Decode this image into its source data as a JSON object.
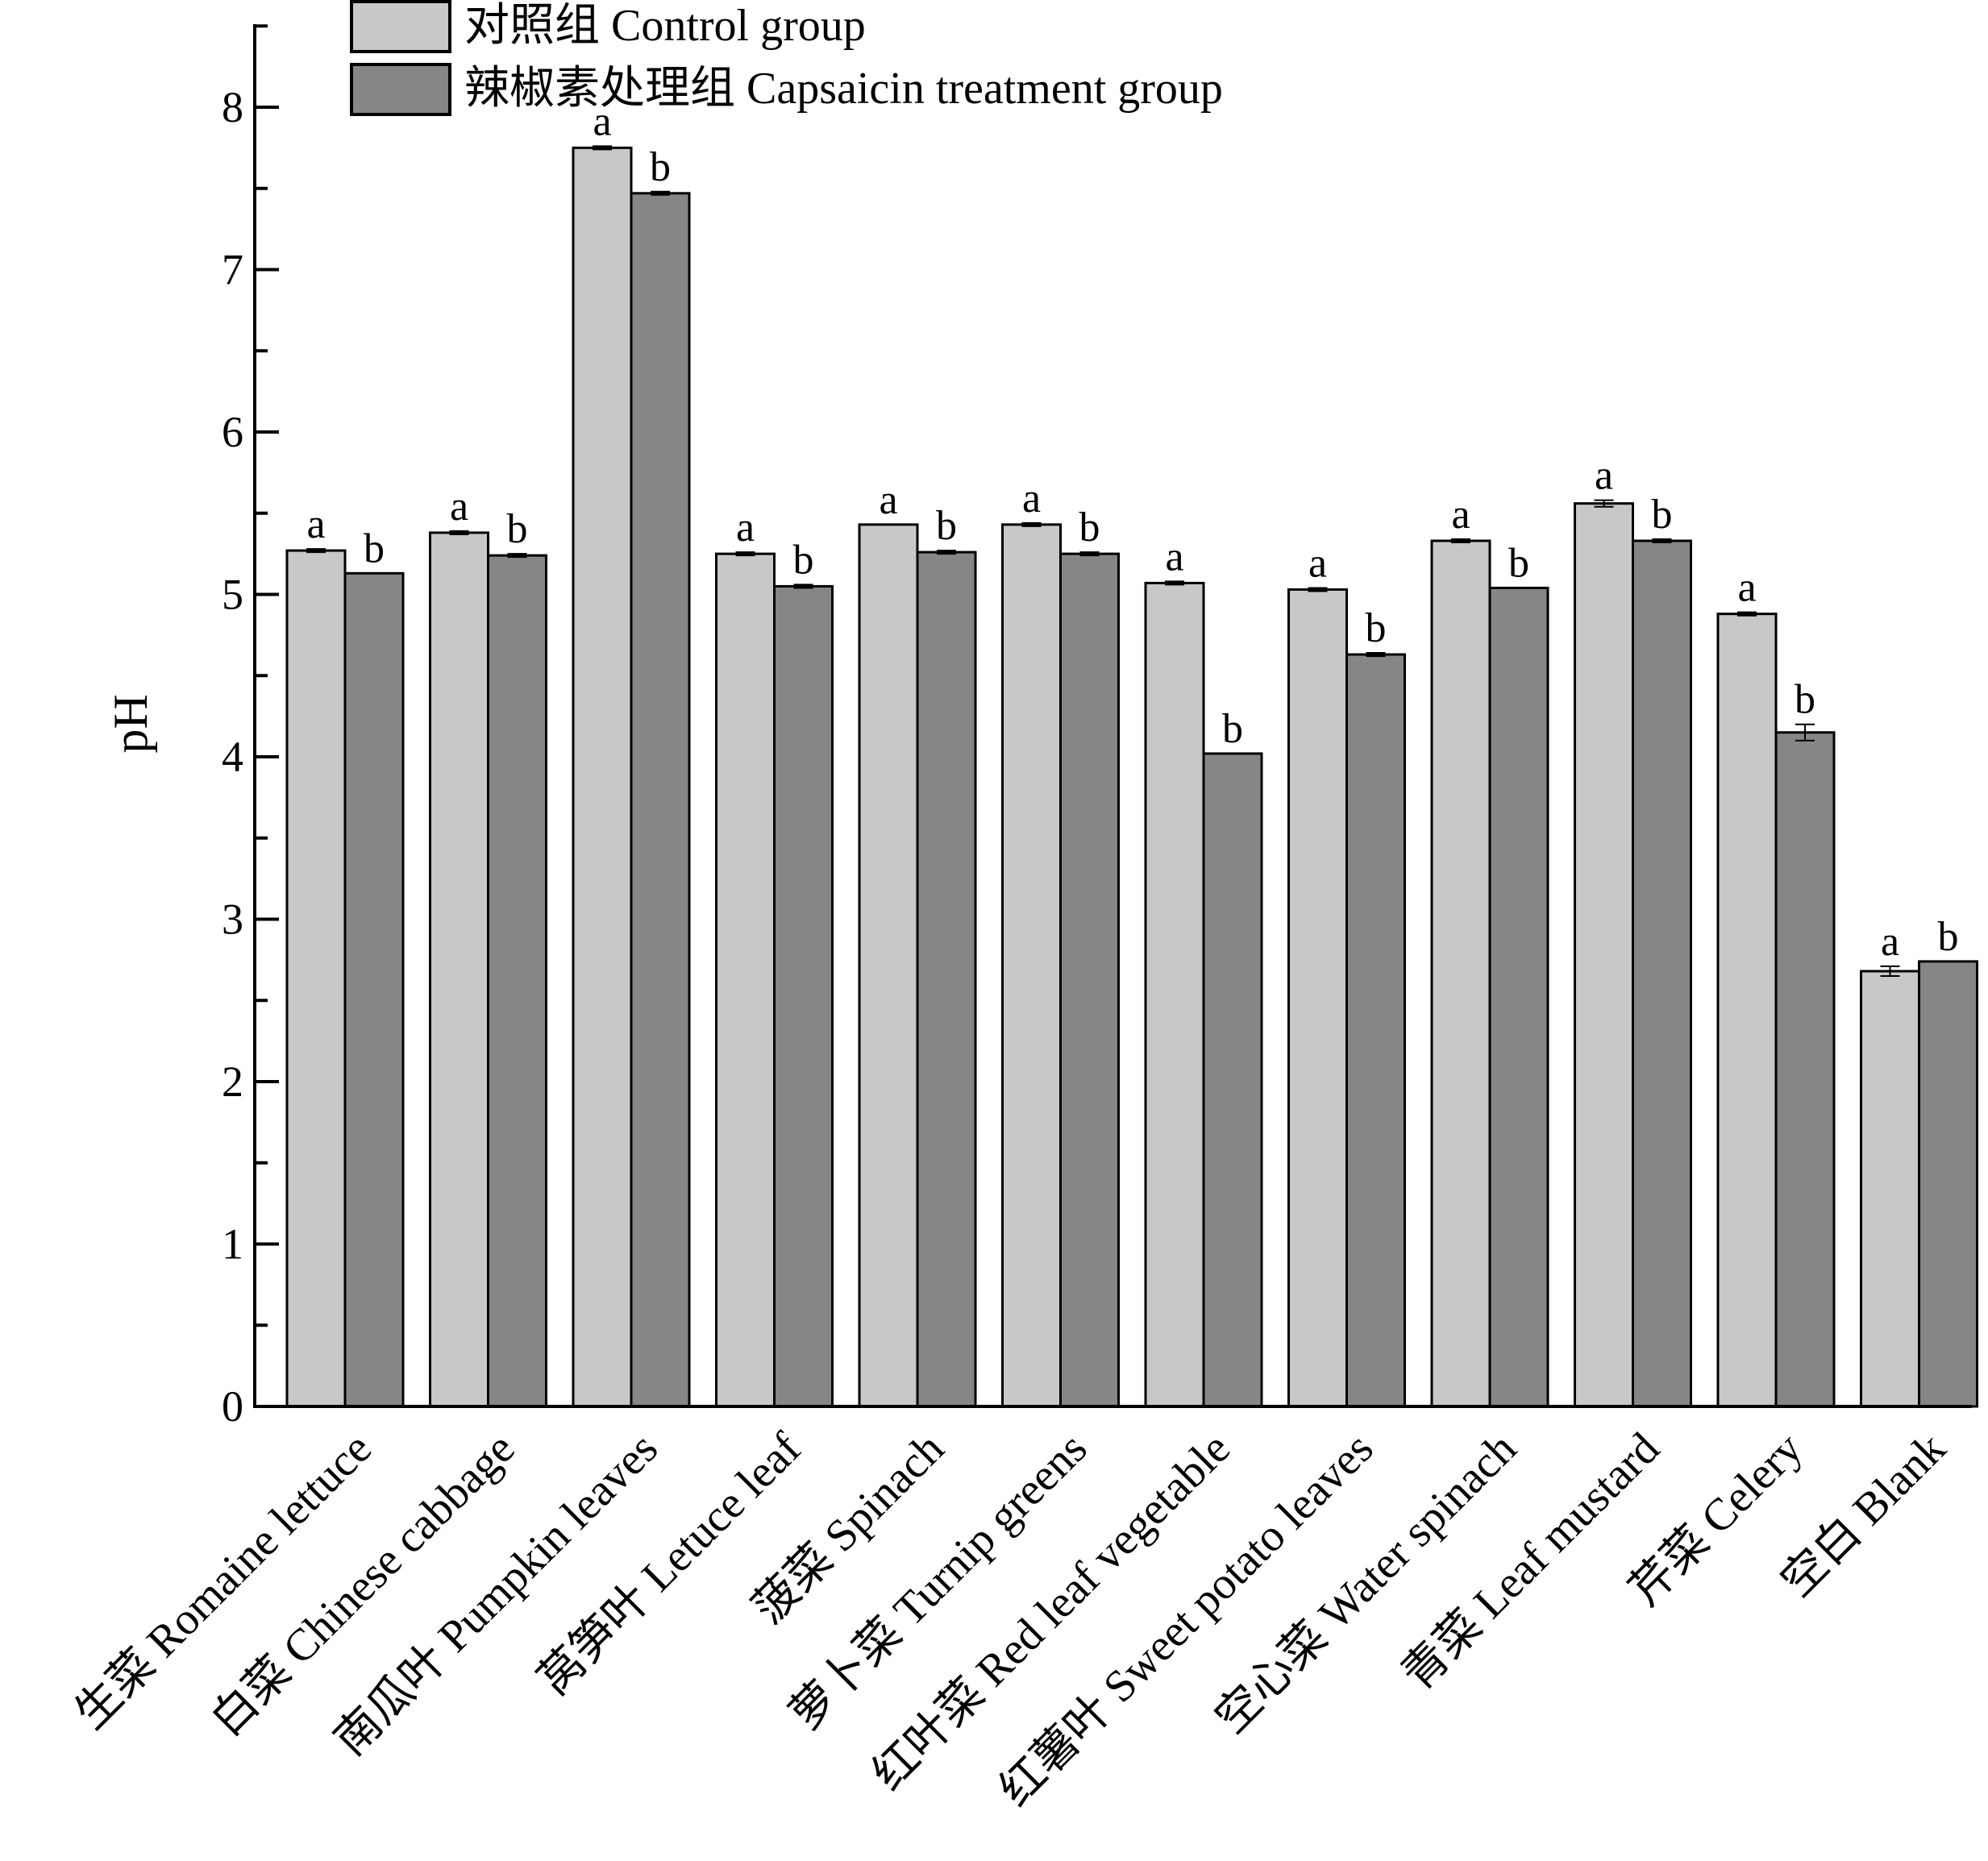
{
  "chart_data": {
    "type": "bar",
    "title": "",
    "xlabel": "",
    "ylabel": "pH",
    "ylim": [
      0,
      8.5
    ],
    "yticks": [
      "0",
      "1",
      "2",
      "3",
      "4",
      "5",
      "6",
      "7",
      "8"
    ],
    "grid": false,
    "legend_position": "top-left",
    "categories": [
      "生菜 Romaine lettuce",
      "白菜 Chinese cabbage",
      "南瓜叶 Pumpkin leaves",
      "莴笋叶 Letuce leaf",
      "菠菜 Spinach",
      "萝卜菜 Turnip greens",
      "红叶菜 Red leaf vegetable",
      "红薯叶 Sweet potato leaves",
      "空心菜 Water spinach",
      "青菜 Leaf mustard",
      "芹菜 Celery",
      "空白 Blank"
    ],
    "series": [
      {
        "name": "对照组 Control group",
        "color": "#c8c8c8",
        "values": [
          5.27,
          5.38,
          7.75,
          5.25,
          5.43,
          5.43,
          5.07,
          5.03,
          5.33,
          5.56,
          4.88,
          2.68
        ],
        "errors": [
          0.01,
          0.01,
          0.01,
          0.01,
          0.0,
          0.01,
          0.01,
          0.01,
          0.01,
          0.02,
          0.01,
          0.03
        ],
        "significance": [
          "a",
          "a",
          "a",
          "a",
          "a",
          "a",
          "a",
          "a",
          "a",
          "a",
          "a",
          "a"
        ]
      },
      {
        "name": "辣椒素处理组 Capsaicin treatment group",
        "color": "#868686",
        "values": [
          5.13,
          5.24,
          7.47,
          5.05,
          5.26,
          5.25,
          4.02,
          4.63,
          5.04,
          5.33,
          4.15,
          2.74
        ],
        "errors": [
          0.0,
          0.01,
          0.01,
          0.01,
          0.01,
          0.01,
          0.0,
          0.01,
          0.0,
          0.01,
          0.05,
          0.0
        ],
        "significance": [
          "b",
          "b",
          "b",
          "b",
          "b",
          "b",
          "b",
          "b",
          "b",
          "b",
          "b",
          "b"
        ]
      }
    ]
  }
}
